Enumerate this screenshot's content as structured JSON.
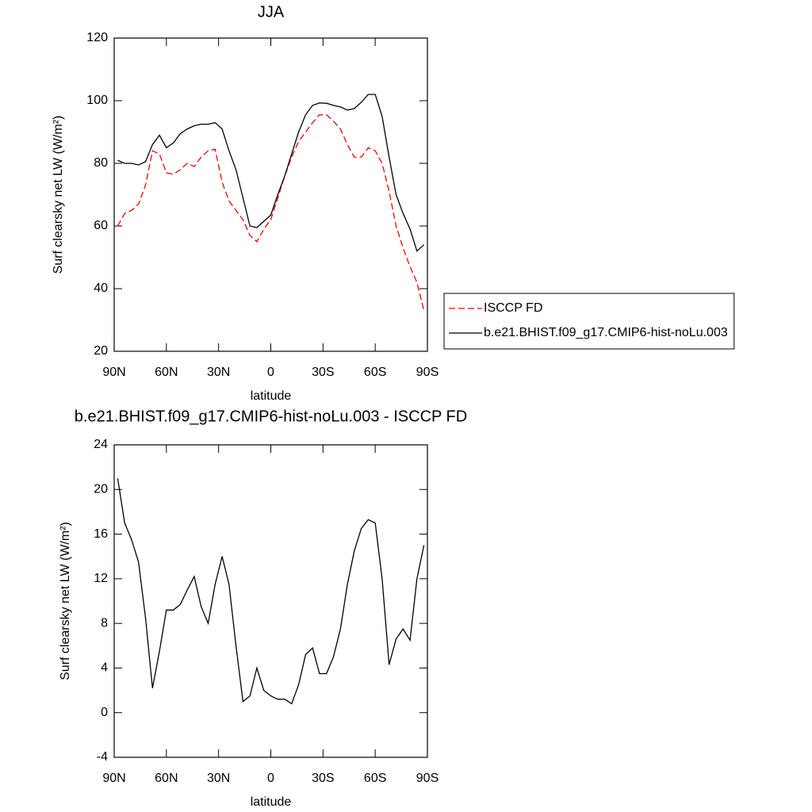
{
  "chart_data": [
    {
      "type": "line",
      "title": "JJA",
      "xlabel": "latitude",
      "ylabel": "Surf clearsky net LW (W/m²)",
      "x": [
        88,
        84,
        80,
        76,
        72,
        68,
        64,
        60,
        56,
        52,
        48,
        44,
        40,
        36,
        32,
        28,
        24,
        20,
        16,
        12,
        8,
        4,
        0,
        -4,
        -8,
        -12,
        -16,
        -20,
        -24,
        -28,
        -32,
        -36,
        -40,
        -44,
        -48,
        -52,
        -56,
        -60,
        -64,
        -68,
        -72,
        -76,
        -80,
        -84,
        -88
      ],
      "series": [
        {
          "name": "ISCCP FD",
          "color": "#ff0000",
          "dash": true,
          "values": [
            60,
            64,
            65,
            67,
            73,
            84,
            83,
            77,
            76.5,
            78,
            80,
            79,
            82,
            84,
            84.5,
            74,
            68,
            65,
            62,
            57,
            55,
            59,
            62,
            69,
            76,
            82,
            87,
            90,
            93,
            95.5,
            95.5,
            93.5,
            91,
            86,
            82,
            82,
            85,
            84,
            80,
            71,
            60,
            53,
            47,
            42,
            33
          ]
        },
        {
          "name": "b.e21.BHIST.f09_g17.CMIP6-hist-noLu.003",
          "color": "#000000",
          "dash": false,
          "values": [
            81,
            80,
            80,
            79.5,
            80.5,
            86,
            89,
            85,
            86.5,
            89.5,
            91,
            92,
            92.5,
            92.5,
            93,
            91,
            84,
            78,
            69,
            60,
            59.5,
            61.5,
            63.5,
            70,
            76,
            83,
            90,
            95.5,
            98.5,
            99.3,
            99.2,
            98.5,
            98,
            97,
            97.5,
            99.5,
            102,
            102,
            95,
            82,
            70,
            64,
            59,
            52,
            54
          ]
        }
      ],
      "xlim": [
        90,
        -90
      ],
      "xticks": [
        {
          "value": 90,
          "label": "90N"
        },
        {
          "value": 60,
          "label": "60N"
        },
        {
          "value": 30,
          "label": "30N"
        },
        0,
        {
          "value": -30,
          "label": "30S"
        },
        {
          "value": -60,
          "label": "60S"
        },
        {
          "value": -90,
          "label": "90S"
        }
      ],
      "ylim": [
        20,
        120
      ],
      "yticks": [
        20,
        40,
        60,
        80,
        100,
        120
      ],
      "legend": "right"
    },
    {
      "type": "line",
      "title": "b.e21.BHIST.f09_g17.CMIP6-hist-noLu.003 - ISCCP FD",
      "xlabel": "latitude",
      "ylabel": "Surf clearsky net LW (W/m²)",
      "x": [
        88,
        84,
        80,
        76,
        72,
        68,
        64,
        60,
        56,
        52,
        48,
        44,
        40,
        36,
        32,
        28,
        24,
        20,
        16,
        12,
        8,
        4,
        0,
        -4,
        -8,
        -12,
        -16,
        -20,
        -24,
        -28,
        -32,
        -36,
        -40,
        -44,
        -48,
        -52,
        -56,
        -60,
        -64,
        -68,
        -72,
        -76,
        -80,
        -84,
        -88
      ],
      "series": [
        {
          "color": "#000000",
          "dash": false,
          "values": [
            21,
            17,
            15.5,
            13.5,
            8.5,
            2.2,
            5.5,
            9.2,
            9.2,
            9.7,
            11,
            12.2,
            9.5,
            8,
            11.5,
            14,
            11.5,
            6,
            1,
            1.5,
            4,
            2,
            1.5,
            1.2,
            1.2,
            0.8,
            2.5,
            5.2,
            5.8,
            3.5,
            3.5,
            5,
            7.5,
            11.5,
            14.5,
            16.5,
            17.3,
            17,
            12,
            4.3,
            6.6,
            7.5,
            6.5,
            12,
            15
          ]
        }
      ],
      "xlim": [
        90,
        -90
      ],
      "xticks": [
        {
          "value": 90,
          "label": "90N"
        },
        {
          "value": 60,
          "label": "60N"
        },
        {
          "value": 30,
          "label": "30N"
        },
        0,
        {
          "value": -30,
          "label": "30S"
        },
        {
          "value": -60,
          "label": "60S"
        },
        {
          "value": -90,
          "label": "90S"
        }
      ],
      "ylim": [
        -4,
        24
      ],
      "yticks": [
        -4,
        0,
        4,
        8,
        12,
        16,
        20,
        24
      ]
    }
  ]
}
